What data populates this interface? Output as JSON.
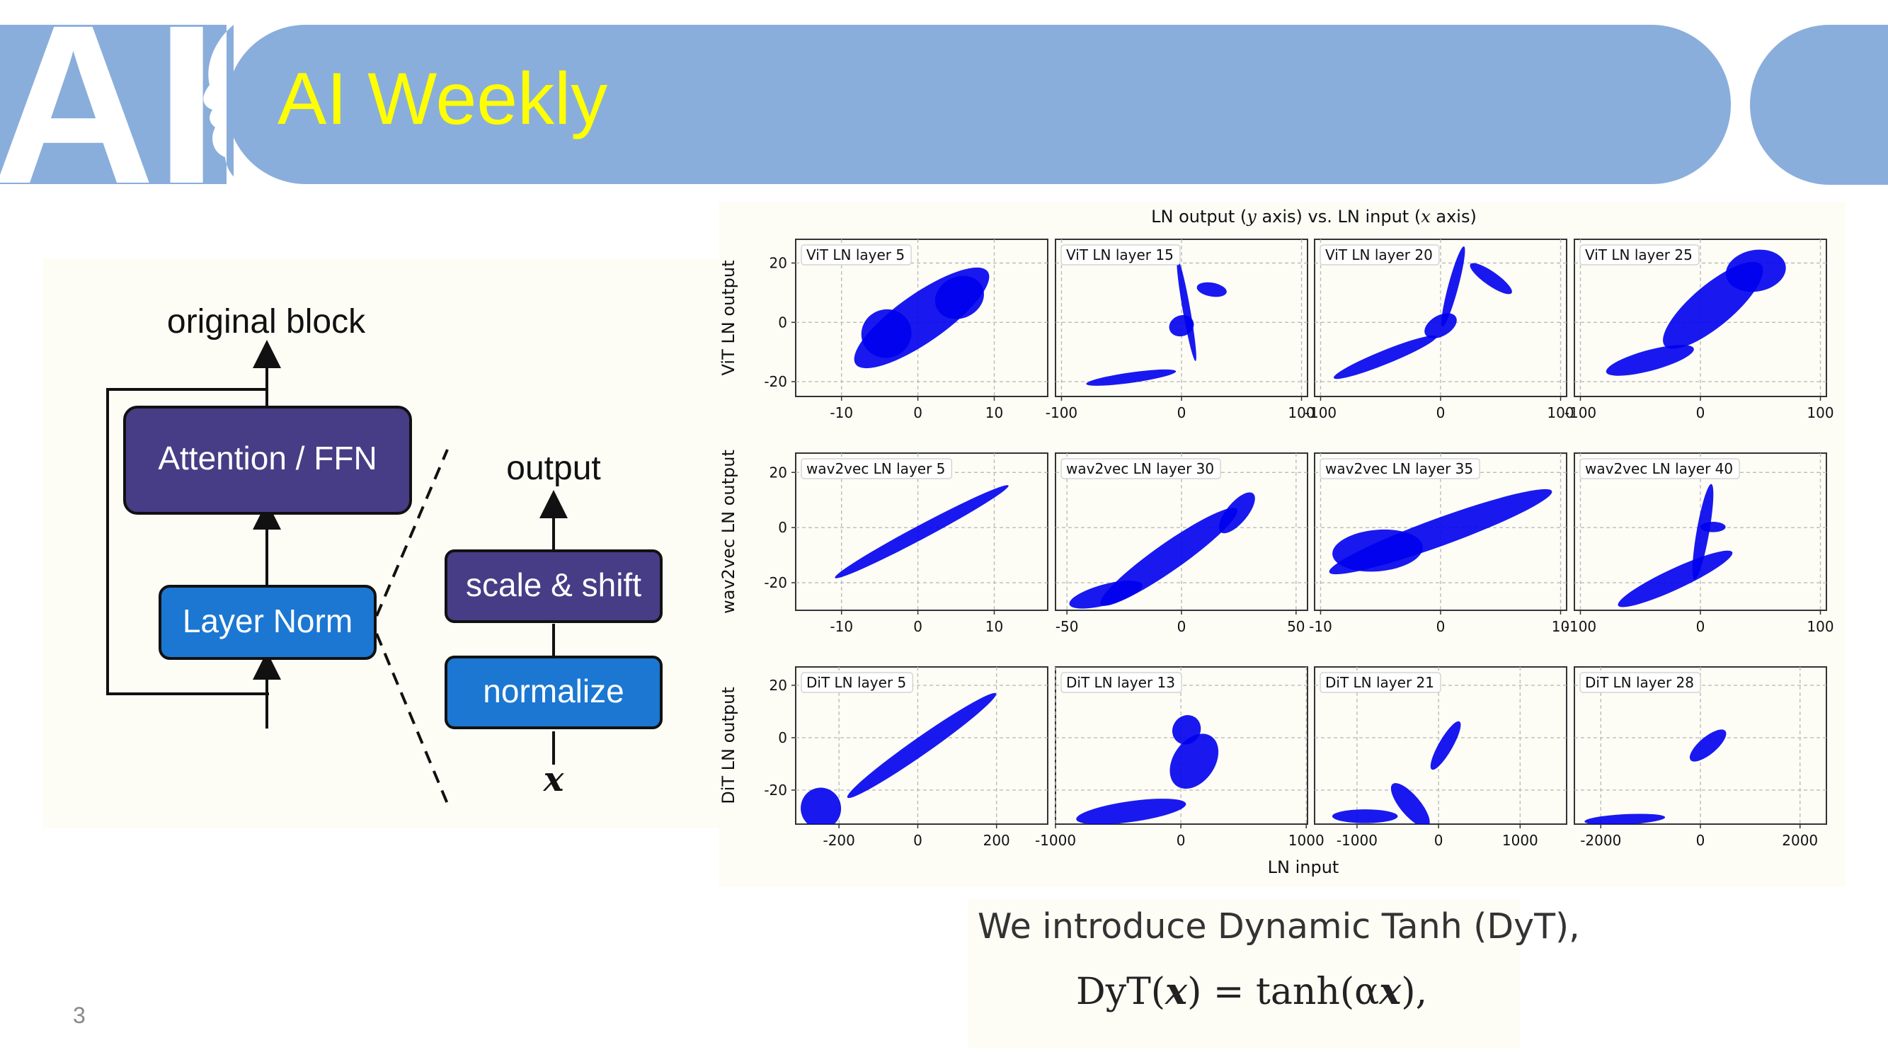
{
  "header": {
    "title": "AI Weekly",
    "logo_letters": "AI",
    "banner_color": "#8aaedb",
    "title_color": "#ffff00"
  },
  "left_diagram": {
    "top_label": "original block",
    "attention_label": "Attention / FFN",
    "layernorm_label": "Layer Norm",
    "output_label": "output",
    "scale_shift_label": "scale & shift",
    "normalize_label": "normalize",
    "input_symbol": "x",
    "colors": {
      "purple": "#463d86",
      "blue": "#1b77d2"
    }
  },
  "chart_data": {
    "type": "scatter",
    "title": "LN output (y axis) vs. LN input (x axis)",
    "title_parts": [
      "LN output (",
      "y",
      " axis) vs. LN input (",
      "x",
      " axis)"
    ],
    "xlabel": "LN input",
    "grid": true,
    "marker_color": "#0000ee",
    "rows": [
      {
        "ylabel": "ViT LN output",
        "yticks": [
          20,
          0,
          -20
        ],
        "ylim": [
          -25,
          28
        ],
        "panels": [
          {
            "title": "ViT LN layer 5",
            "xticks": [
              -10,
              0,
              10
            ],
            "xlim": [
              -16,
              17
            ]
          },
          {
            "title": "ViT LN layer 15",
            "xticks": [
              -100,
              0,
              100
            ],
            "xlim": [
              -105,
              105
            ]
          },
          {
            "title": "ViT LN layer 20",
            "xticks": [
              -100,
              0,
              100
            ],
            "xlim": [
              -105,
              105
            ]
          },
          {
            "title": "ViT LN layer 25",
            "xticks": [
              -100,
              0,
              100
            ],
            "xlim": [
              -105,
              105
            ]
          }
        ]
      },
      {
        "ylabel": "wav2vec LN output",
        "yticks": [
          20,
          0,
          -20
        ],
        "ylim": [
          -30,
          27
        ],
        "panels": [
          {
            "title": "wav2vec LN layer 5",
            "xticks": [
              -10,
              0,
              10
            ],
            "xlim": [
              -16,
              17
            ]
          },
          {
            "title": "wav2vec LN layer 30",
            "xticks": [
              -50,
              0,
              50
            ],
            "xlim": [
              -55,
              55
            ]
          },
          {
            "title": "wav2vec LN layer 35",
            "xticks": [
              -10,
              0,
              10
            ],
            "xlim": [
              -10.5,
              10.5
            ]
          },
          {
            "title": "wav2vec LN layer 40",
            "xticks": [
              -100,
              0,
              100
            ],
            "xlim": [
              -105,
              105
            ]
          }
        ]
      },
      {
        "ylabel": "DiT LN output",
        "yticks": [
          20,
          0,
          -20
        ],
        "ylim": [
          -33,
          27
        ],
        "panels": [
          {
            "title": "DiT LN layer 5",
            "xticks": [
              -200,
              0,
              200
            ],
            "xlim": [
              -310,
              330
            ]
          },
          {
            "title": "DiT LN layer 13",
            "xticks": [
              -1000,
              0,
              1000
            ],
            "xlim": [
              -1000,
              1010
            ]
          },
          {
            "title": "DiT LN layer 21",
            "xticks": [
              -1000,
              0,
              1000
            ],
            "xlim": [
              -1520,
              1570
            ]
          },
          {
            "title": "DiT LN layer 28",
            "xticks": [
              -2000,
              0,
              2000
            ],
            "xlim": [
              -2530,
              2530
            ]
          }
        ]
      }
    ]
  },
  "caption": {
    "text": "We introduce Dynamic Tanh (DyT),",
    "formula_lhs": "DyT(",
    "formula_x1": "x",
    "formula_mid": ") = tanh(α",
    "formula_x2": "x",
    "formula_end": "),"
  },
  "page_number": "3"
}
